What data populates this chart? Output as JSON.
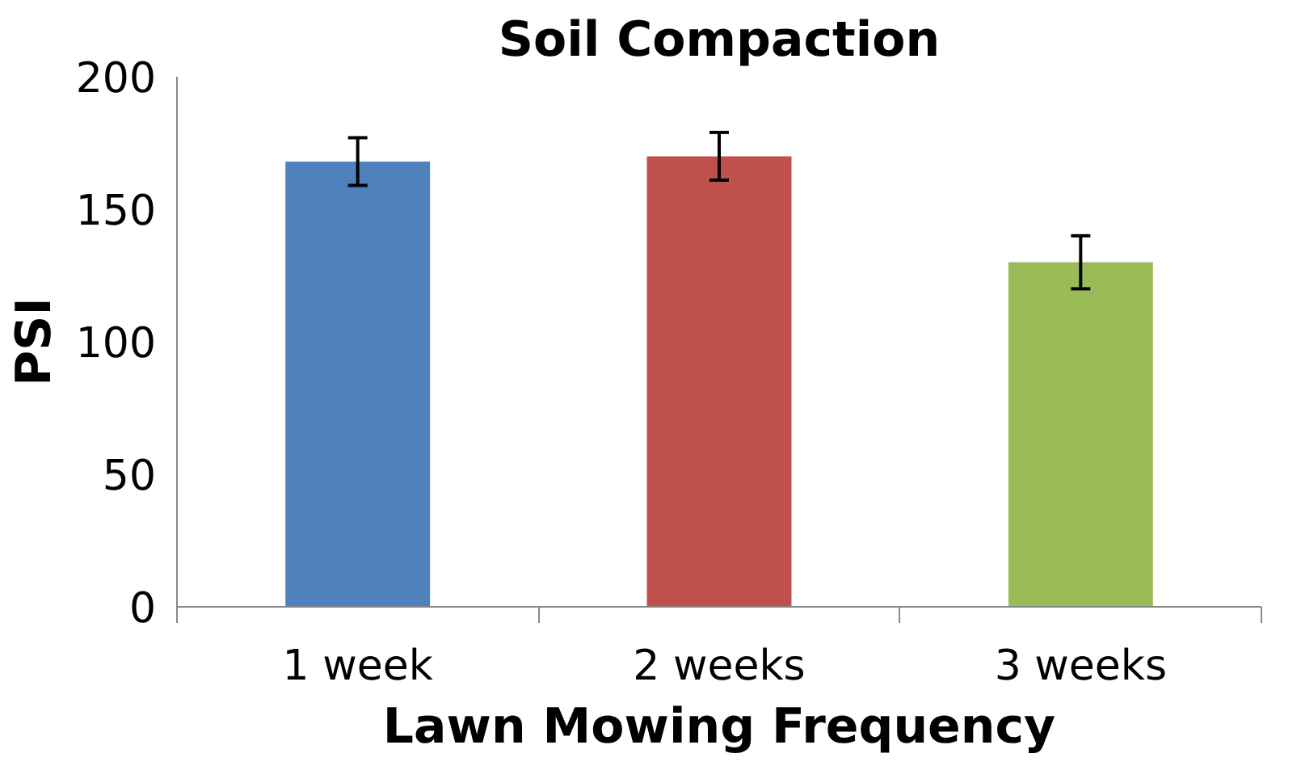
{
  "chart_data": {
    "type": "bar",
    "title": "Soil Compaction",
    "xlabel": "Lawn Mowing Frequency",
    "ylabel": "PSI",
    "categories": [
      "1 week",
      "2 weeks",
      "3 weeks"
    ],
    "values": [
      168,
      170,
      130
    ],
    "errors": [
      9,
      9,
      10
    ],
    "colors": [
      "#4f81bd",
      "#c0504d",
      "#9bbb59"
    ],
    "ylim": [
      0,
      200
    ],
    "yticks": [
      0,
      50,
      100,
      150,
      200
    ],
    "grid": false
  }
}
